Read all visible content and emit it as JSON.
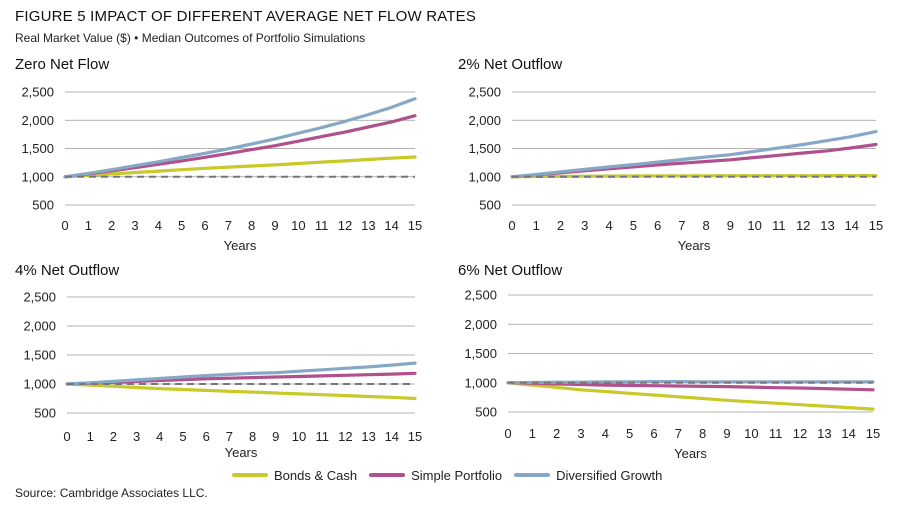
{
  "figure": {
    "title": "FIGURE 5  IMPACT OF DIFFERENT AVERAGE NET FLOW RATES",
    "subtitle": "Real Market Value ($) • Median Outcomes of Portfolio Simulations",
    "source": "Source: Cambridge Associates LLC."
  },
  "legend": [
    {
      "name": "Bonds & Cash",
      "color": "#c9c92a"
    },
    {
      "name": "Simple Portfolio",
      "color": "#b0508c"
    },
    {
      "name": "Diversified Growth",
      "color": "#87a7c6"
    }
  ],
  "colors": {
    "bonds": "#c9c92a",
    "simple": "#b0508c",
    "diversified": "#87a7c6",
    "baseline": "#777777",
    "grid": "#9a9a9a"
  },
  "chart_data": [
    {
      "type": "line",
      "title": "Zero Net Flow",
      "xlabel": "Years",
      "ylabel": "",
      "x": [
        0,
        1,
        2,
        3,
        4,
        5,
        6,
        7,
        8,
        9,
        10,
        11,
        12,
        13,
        14,
        15
      ],
      "xlim": [
        0,
        15
      ],
      "ylim": [
        500,
        2500
      ],
      "yticks": [
        500,
        1000,
        1500,
        2000,
        2500
      ],
      "ytick_labels": [
        "500",
        "1,000",
        "1,500",
        "2,000",
        "2,500"
      ],
      "baseline": 1000,
      "grid": true,
      "series": [
        {
          "name": "Bonds & Cash",
          "values": [
            1000,
            1025,
            1050,
            1075,
            1100,
            1125,
            1150,
            1170,
            1190,
            1210,
            1235,
            1260,
            1280,
            1305,
            1330,
            1350
          ]
        },
        {
          "name": "Simple Portfolio",
          "values": [
            1000,
            1050,
            1105,
            1160,
            1220,
            1280,
            1345,
            1410,
            1480,
            1550,
            1630,
            1710,
            1790,
            1880,
            1970,
            2080
          ]
        },
        {
          "name": "Diversified Growth",
          "values": [
            1000,
            1060,
            1125,
            1195,
            1265,
            1340,
            1415,
            1495,
            1580,
            1670,
            1770,
            1870,
            1980,
            2100,
            2230,
            2380
          ]
        }
      ]
    },
    {
      "type": "line",
      "title": "2% Net Outflow",
      "xlabel": "Years",
      "ylabel": "",
      "x": [
        0,
        1,
        2,
        3,
        4,
        5,
        6,
        7,
        8,
        9,
        10,
        11,
        12,
        13,
        14,
        15
      ],
      "xlim": [
        0,
        15
      ],
      "ylim": [
        500,
        2500
      ],
      "yticks": [
        500,
        1000,
        1500,
        2000,
        2500
      ],
      "ytick_labels": [
        "500",
        "1,000",
        "1,500",
        "2,000",
        "2,500"
      ],
      "baseline": 1000,
      "grid": true,
      "series": [
        {
          "name": "Bonds & Cash",
          "values": [
            1000,
            1005,
            1008,
            1010,
            1012,
            1014,
            1015,
            1016,
            1017,
            1018,
            1018,
            1019,
            1019,
            1020,
            1020,
            1020
          ]
        },
        {
          "name": "Simple Portfolio",
          "values": [
            1000,
            1035,
            1070,
            1105,
            1140,
            1175,
            1210,
            1240,
            1270,
            1300,
            1340,
            1380,
            1420,
            1460,
            1510,
            1570
          ]
        },
        {
          "name": "Diversified Growth",
          "values": [
            1000,
            1040,
            1085,
            1130,
            1175,
            1215,
            1260,
            1305,
            1350,
            1390,
            1450,
            1510,
            1570,
            1640,
            1710,
            1800
          ]
        }
      ]
    },
    {
      "type": "line",
      "title": "4% Net Outflow",
      "xlabel": "Years",
      "ylabel": "",
      "x": [
        0,
        1,
        2,
        3,
        4,
        5,
        6,
        7,
        8,
        9,
        10,
        11,
        12,
        13,
        14,
        15
      ],
      "xlim": [
        0,
        15
      ],
      "ylim": [
        500,
        2500
      ],
      "yticks": [
        500,
        1000,
        1500,
        2000,
        2500
      ],
      "ytick_labels": [
        "500",
        "1,000",
        "1,500",
        "2,000",
        "2,500"
      ],
      "baseline": 1000,
      "grid": true,
      "series": [
        {
          "name": "Bonds & Cash",
          "values": [
            1000,
            980,
            960,
            940,
            920,
            905,
            890,
            875,
            860,
            845,
            830,
            815,
            800,
            785,
            770,
            750
          ]
        },
        {
          "name": "Simple Portfolio",
          "values": [
            1000,
            1015,
            1030,
            1045,
            1060,
            1075,
            1090,
            1100,
            1110,
            1120,
            1130,
            1140,
            1150,
            1160,
            1170,
            1185
          ]
        },
        {
          "name": "Diversified Growth",
          "values": [
            1000,
            1020,
            1045,
            1070,
            1095,
            1120,
            1145,
            1165,
            1185,
            1195,
            1220,
            1245,
            1270,
            1295,
            1325,
            1360
          ]
        }
      ]
    },
    {
      "type": "line",
      "title": "6% Net Outflow",
      "xlabel": "Years",
      "ylabel": "",
      "x": [
        0,
        1,
        2,
        3,
        4,
        5,
        6,
        7,
        8,
        9,
        10,
        11,
        12,
        13,
        14,
        15
      ],
      "xlim": [
        0,
        15
      ],
      "ylim": [
        500,
        2500
      ],
      "yticks": [
        500,
        1000,
        1500,
        2000,
        2500
      ],
      "ytick_labels": [
        "500",
        "1,000",
        "1,500",
        "2,000",
        "2,500"
      ],
      "baseline": 1000,
      "grid": true,
      "series": [
        {
          "name": "Bonds & Cash",
          "values": [
            1000,
            960,
            920,
            880,
            850,
            820,
            790,
            760,
            730,
            700,
            675,
            650,
            625,
            600,
            575,
            550
          ]
        },
        {
          "name": "Simple Portfolio",
          "values": [
            1000,
            990,
            980,
            970,
            960,
            955,
            950,
            945,
            940,
            935,
            925,
            915,
            910,
            900,
            890,
            880
          ]
        },
        {
          "name": "Diversified Growth",
          "values": [
            1000,
            1005,
            1010,
            1010,
            1015,
            1015,
            1020,
            1020,
            1015,
            1015,
            1015,
            1015,
            1015,
            1015,
            1015,
            1015
          ]
        }
      ]
    }
  ]
}
